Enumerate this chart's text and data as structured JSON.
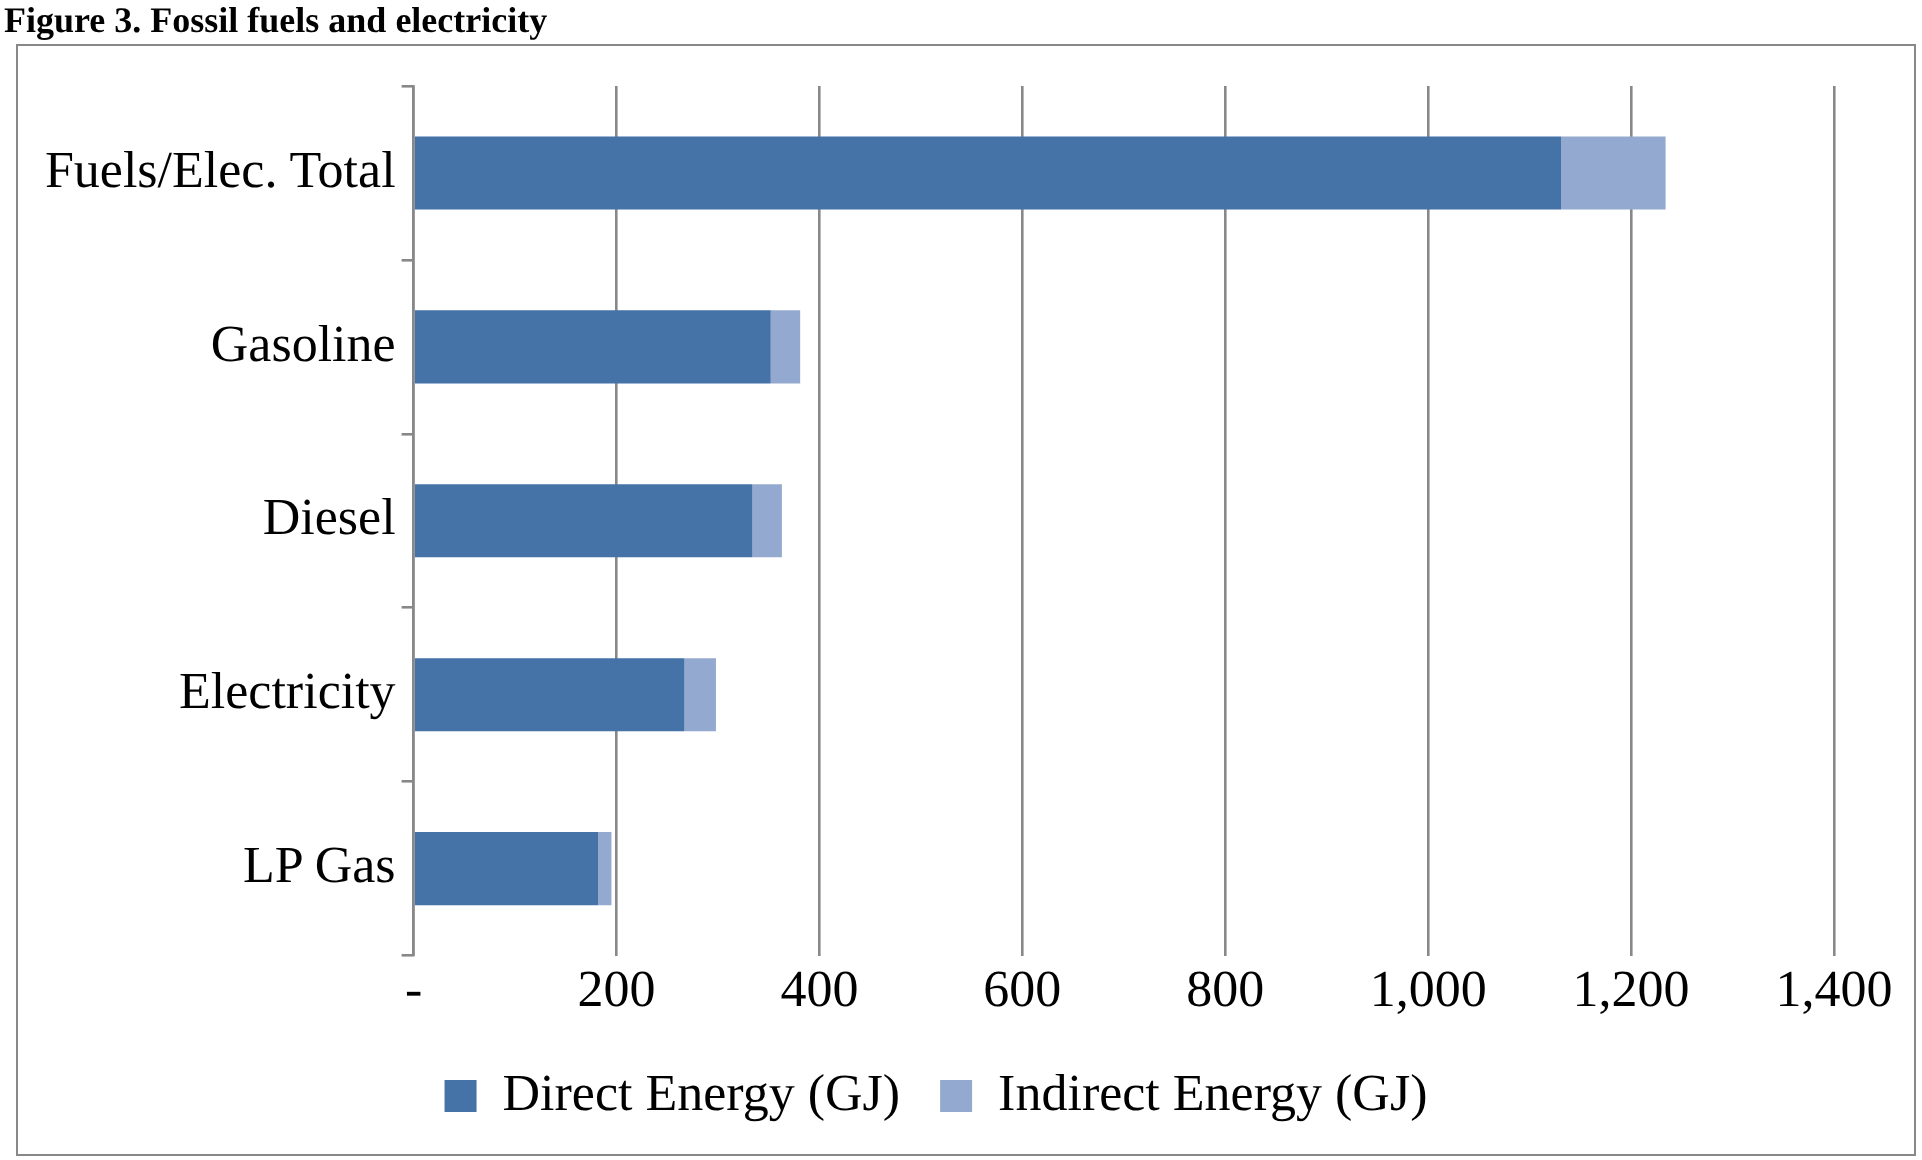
{
  "chart_data": {
    "type": "bar",
    "orientation": "horizontal",
    "stacked": true,
    "title": "Figure 3. Fossil fuels and electricity",
    "categories": [
      "Fuels/Elec. Total",
      "Gasoline",
      "Diesel",
      "Electricity",
      "LP Gas"
    ],
    "series": [
      {
        "name": "Direct Energy (GJ)",
        "color": "#4572a7",
        "values": [
          1131,
          352,
          334,
          267,
          182
        ]
      },
      {
        "name": "Indirect Energy (GJ)",
        "color": "#93a9cf",
        "values": [
          103,
          29,
          29,
          31,
          13
        ]
      }
    ],
    "xlim": [
      0,
      1400
    ],
    "xticks": [
      {
        "value": 0,
        "label": "-"
      },
      200,
      400,
      600,
      800,
      {
        "value": 1000,
        "label": "1,000"
      },
      {
        "value": 1200,
        "label": "1,200"
      },
      {
        "value": 1400,
        "label": "1,400"
      }
    ],
    "grid": "x",
    "legend": "bottom"
  }
}
